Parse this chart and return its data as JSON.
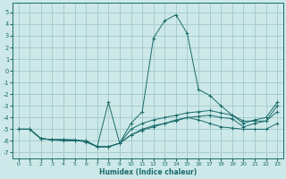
{
  "xlabel": "Humidex (Indice chaleur)",
  "background_color": "#cde8e8",
  "grid_color": "#a0c8c8",
  "line_color": "#1a6b6b",
  "xlim": [
    -0.5,
    23.5
  ],
  "ylim": [
    -7.5,
    5.8
  ],
  "yticks": [
    -7,
    -6,
    -5,
    -4,
    -3,
    -2,
    -1,
    0,
    1,
    2,
    3,
    4,
    5
  ],
  "xticks": [
    0,
    1,
    2,
    3,
    4,
    5,
    6,
    7,
    8,
    9,
    10,
    11,
    12,
    13,
    14,
    15,
    16,
    17,
    18,
    19,
    20,
    21,
    22,
    23
  ],
  "series": [
    [
      [
        0,
        -5.0
      ],
      [
        1,
        -5.0
      ],
      [
        2,
        -5.8
      ],
      [
        3,
        -5.9
      ],
      [
        4,
        -5.9
      ],
      [
        5,
        -5.95
      ],
      [
        6,
        -6.0
      ],
      [
        7,
        -6.5
      ],
      [
        8,
        -6.5
      ],
      [
        9,
        -6.2
      ],
      [
        10,
        -5.5
      ],
      [
        11,
        -5.1
      ],
      [
        12,
        -4.8
      ],
      [
        13,
        -4.5
      ],
      [
        14,
        -4.3
      ],
      [
        15,
        -4.0
      ],
      [
        16,
        -3.9
      ],
      [
        17,
        -3.8
      ],
      [
        18,
        -4.0
      ],
      [
        19,
        -4.1
      ],
      [
        20,
        -4.8
      ],
      [
        21,
        -4.5
      ],
      [
        22,
        -4.3
      ],
      [
        23,
        -3.5
      ]
    ],
    [
      [
        0,
        -5.0
      ],
      [
        1,
        -5.0
      ],
      [
        2,
        -5.8
      ],
      [
        3,
        -5.9
      ],
      [
        4,
        -5.9
      ],
      [
        5,
        -5.95
      ],
      [
        6,
        -6.0
      ],
      [
        7,
        -6.5
      ],
      [
        8,
        -6.5
      ],
      [
        9,
        -6.2
      ],
      [
        10,
        -5.5
      ],
      [
        11,
        -5.0
      ],
      [
        12,
        -4.7
      ],
      [
        13,
        -4.5
      ],
      [
        14,
        -4.2
      ],
      [
        15,
        -4.0
      ],
      [
        16,
        -4.2
      ],
      [
        17,
        -4.5
      ],
      [
        18,
        -4.8
      ],
      [
        19,
        -4.9
      ],
      [
        20,
        -5.0
      ],
      [
        21,
        -5.0
      ],
      [
        22,
        -5.0
      ],
      [
        23,
        -4.5
      ]
    ],
    [
      [
        0,
        -5.0
      ],
      [
        1,
        -5.0
      ],
      [
        2,
        -5.8
      ],
      [
        3,
        -5.9
      ],
      [
        4,
        -5.9
      ],
      [
        5,
        -5.9
      ],
      [
        6,
        -6.1
      ],
      [
        7,
        -6.5
      ],
      [
        8,
        -6.5
      ],
      [
        9,
        -6.2
      ],
      [
        10,
        -5.0
      ],
      [
        11,
        -4.5
      ],
      [
        12,
        -4.2
      ],
      [
        13,
        -4.0
      ],
      [
        14,
        -3.8
      ],
      [
        15,
        -3.6
      ],
      [
        16,
        -3.5
      ],
      [
        17,
        -3.4
      ],
      [
        18,
        -3.6
      ],
      [
        19,
        -3.8
      ],
      [
        20,
        -4.5
      ],
      [
        21,
        -4.2
      ],
      [
        22,
        -4.0
      ],
      [
        23,
        -2.7
      ]
    ],
    [
      [
        0,
        -5.0
      ],
      [
        1,
        -5.0
      ],
      [
        2,
        -5.8
      ],
      [
        3,
        -5.9
      ],
      [
        4,
        -6.0
      ],
      [
        5,
        -6.0
      ],
      [
        6,
        -6.0
      ],
      [
        7,
        -6.5
      ],
      [
        8,
        -2.7
      ],
      [
        9,
        -6.2
      ],
      [
        10,
        -4.5
      ],
      [
        11,
        -3.5
      ],
      [
        12,
        2.8
      ],
      [
        13,
        4.3
      ],
      [
        14,
        4.8
      ],
      [
        15,
        3.2
      ],
      [
        16,
        -1.6
      ],
      [
        17,
        -2.1
      ],
      [
        18,
        -3.0
      ],
      [
        19,
        -3.8
      ],
      [
        20,
        -4.3
      ],
      [
        21,
        -4.3
      ],
      [
        22,
        -4.3
      ],
      [
        23,
        -3.0
      ]
    ]
  ]
}
